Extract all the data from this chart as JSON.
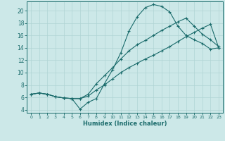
{
  "xlabel": "Humidex (Indice chaleur)",
  "bg_color": "#cce8e8",
  "line_color": "#1a6b6b",
  "grid_color": "#b0d4d4",
  "xlim": [
    -0.5,
    23.5
  ],
  "ylim": [
    3.5,
    21.5
  ],
  "xticks": [
    0,
    1,
    2,
    3,
    4,
    5,
    6,
    7,
    8,
    9,
    10,
    11,
    12,
    13,
    14,
    15,
    16,
    17,
    18,
    19,
    20,
    21,
    22,
    23
  ],
  "yticks": [
    4,
    6,
    8,
    10,
    12,
    14,
    16,
    18,
    20
  ],
  "curve1_x": [
    0,
    1,
    2,
    3,
    4,
    5,
    6,
    7,
    8,
    9,
    10,
    11,
    12,
    13,
    14,
    15,
    16,
    17,
    18,
    19,
    20,
    21,
    22,
    23
  ],
  "curve1_y": [
    6.5,
    6.7,
    6.5,
    6.1,
    5.9,
    5.8,
    4.1,
    5.2,
    5.8,
    8.2,
    10.5,
    13.2,
    16.7,
    19.0,
    20.5,
    21.0,
    20.7,
    19.8,
    17.5,
    16.0,
    15.3,
    14.7,
    13.8,
    14.0
  ],
  "curve2_x": [
    0,
    1,
    2,
    3,
    4,
    5,
    6,
    7,
    8,
    9,
    10,
    11,
    12,
    13,
    14,
    15,
    16,
    17,
    18,
    19,
    20,
    21,
    22,
    23
  ],
  "curve2_y": [
    6.5,
    6.7,
    6.5,
    6.1,
    5.9,
    5.8,
    5.8,
    6.5,
    8.2,
    9.5,
    10.8,
    12.2,
    13.5,
    14.5,
    15.2,
    16.0,
    16.8,
    17.5,
    18.2,
    18.8,
    17.5,
    16.2,
    15.3,
    14.2
  ],
  "curve3_x": [
    0,
    1,
    2,
    3,
    4,
    5,
    6,
    7,
    8,
    9,
    10,
    11,
    12,
    13,
    14,
    15,
    16,
    17,
    18,
    19,
    20,
    21,
    22,
    23
  ],
  "curve3_y": [
    6.5,
    6.7,
    6.5,
    6.1,
    5.9,
    5.8,
    5.8,
    6.2,
    7.2,
    8.0,
    9.0,
    10.0,
    10.8,
    11.5,
    12.2,
    12.8,
    13.5,
    14.2,
    15.0,
    15.8,
    16.5,
    17.2,
    17.8,
    14.0
  ]
}
